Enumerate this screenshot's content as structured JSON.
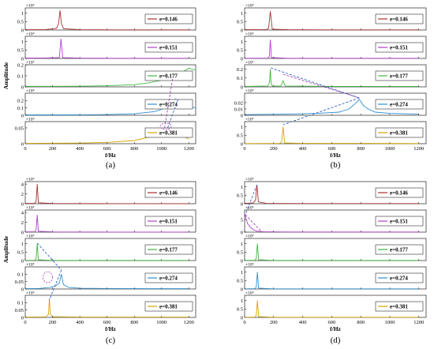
{
  "figure": {
    "xlabel": "f/Hz",
    "ylabel": "Amplitude",
    "colors": {
      "e0146": "#a83030",
      "e0151": "#b040c8",
      "e0177": "#40b840",
      "e0274": "#2f8fd0",
      "e0381": "#d9a400",
      "dashed": "#3060c0",
      "ellipse": "#a040b0",
      "axis": "#000000"
    }
  },
  "chart_data": [
    {
      "type": "line",
      "panel_label": "(a)",
      "xlabel": "f/Hz",
      "ylabel": "Amplitude",
      "xlim": [
        0,
        1250
      ],
      "xticks": [
        "0",
        "200",
        "400",
        "600",
        "800",
        "1000",
        "1200"
      ],
      "subplots": [
        {
          "legend": "e=0.146",
          "color": "#a83030",
          "exponent": "×10⁴",
          "ylim": [
            0,
            1.3
          ],
          "yticks": [
            "0",
            "0.5",
            "1"
          ],
          "series": {
            "x": [
              0,
              150,
              230,
              245,
              255,
              265,
              280,
              400,
              600,
              800,
              1000,
              1200
            ],
            "y": [
              0.02,
              0.03,
              0.1,
              0.4,
              1.15,
              0.4,
              0.08,
              0.02,
              0.01,
              0.01,
              0.01,
              0.01
            ]
          }
        },
        {
          "legend": "e=0.151",
          "color": "#b040c8",
          "exponent": "×10⁴",
          "ylim": [
            0,
            1.3
          ],
          "yticks": [
            "0",
            "0.5",
            "1"
          ],
          "series": {
            "x": [
              0,
              150,
              250,
              262,
              275,
              400,
              600,
              800,
              1000,
              1200
            ],
            "y": [
              0.02,
              0.03,
              0.05,
              1.15,
              0.05,
              0.02,
              0.01,
              0.01,
              0.01,
              0.01
            ]
          }
        },
        {
          "legend": "e=0.177",
          "color": "#40b840",
          "exponent": "×10³",
          "ylim": [
            0,
            0.2
          ],
          "yticks": [
            "0",
            "0.1",
            "0.2"
          ],
          "series": {
            "x": [
              0,
              200,
              400,
              600,
              700,
              800,
              900,
              1000,
              1050,
              1100,
              1150,
              1200,
              1250
            ],
            "y": [
              0.005,
              0.005,
              0.006,
              0.01,
              0.015,
              0.02,
              0.035,
              0.06,
              0.08,
              0.1,
              0.13,
              0.17,
              0.15
            ]
          }
        },
        {
          "legend": "e=0.274",
          "color": "#2f8fd0",
          "exponent": "×10⁴",
          "ylim": [
            0,
            0.3
          ],
          "yticks": [
            "0",
            "0.1",
            "0.2"
          ],
          "series": {
            "x": [
              0,
              400,
              600,
              800,
              950,
              1000,
              1050,
              1100,
              1150,
              1200,
              1250
            ],
            "y": [
              0.005,
              0.006,
              0.01,
              0.02,
              0.05,
              0.08,
              0.13,
              0.22,
              0.16,
              0.12,
              0.1
            ]
          }
        },
        {
          "legend": "e=0.381",
          "color": "#d9a400",
          "exponent": "×10⁴",
          "ylim": [
            0,
            0.07
          ],
          "yticks": [
            "0",
            "0.05"
          ],
          "series": {
            "x": [
              0,
              400,
              600,
              800,
              900,
              950,
              1000,
              1050,
              1100,
              1150,
              1200
            ],
            "y": [
              0.001,
              0.002,
              0.004,
              0.01,
              0.02,
              0.035,
              0.045,
              0.05,
              0.038,
              0.025,
              0.015
            ]
          }
        }
      ]
    },
    {
      "type": "line",
      "panel_label": "(b)",
      "xlabel": "f/Hz",
      "ylabel": "",
      "xlim": [
        0,
        1250
      ],
      "xticks": [
        "0",
        "200",
        "400",
        "600",
        "800",
        "1000",
        "1200"
      ],
      "subplots": [
        {
          "legend": "e=0.146",
          "color": "#a83030",
          "exponent": "×10⁴",
          "ylim": [
            0,
            1.3
          ],
          "yticks": [
            "0",
            "0.5",
            "1"
          ],
          "series": {
            "x": [
              0,
              150,
              165,
              177,
              190,
              300,
              600,
              900,
              1200
            ],
            "y": [
              0.02,
              0.03,
              0.1,
              1.1,
              0.05,
              0.02,
              0.01,
              0.01,
              0.01
            ]
          }
        },
        {
          "legend": "e=0.151",
          "color": "#b040c8",
          "exponent": "×10⁵",
          "ylim": [
            0,
            1.3
          ],
          "yticks": [
            "0",
            "0.5",
            "1"
          ],
          "series": {
            "x": [
              0,
              160,
              170,
              177,
              185,
              300,
              600,
              900,
              1200
            ],
            "y": [
              0.01,
              0.02,
              0.1,
              1.1,
              0.05,
              0.01,
              0.01,
              0.01,
              0.01
            ]
          }
        },
        {
          "legend": "e=0.177",
          "color": "#40b840",
          "exponent": "×10⁵",
          "ylim": [
            0,
            0.25
          ],
          "yticks": [
            "0",
            "0.1",
            "0.2"
          ],
          "series": {
            "x": [
              0,
              160,
              172,
              177,
              182,
              190,
              250,
              265,
              280,
              600,
              900,
              1200
            ],
            "y": [
              0.005,
              0.01,
              0.05,
              0.2,
              0.05,
              0.01,
              0.01,
              0.07,
              0.01,
              0.005,
              0.005,
              0.005
            ]
          }
        },
        {
          "legend": "e=0.274",
          "color": "#2f8fd0",
          "exponent": "×10⁵",
          "ylim": [
            0,
            0.035
          ],
          "yticks": [
            "0",
            "0.01",
            "0.02"
          ],
          "series": {
            "x": [
              0,
              300,
              500,
              650,
              720,
              760,
              790,
              820,
              850,
              900,
              1000,
              1200
            ],
            "y": [
              0.001,
              0.002,
              0.003,
              0.005,
              0.01,
              0.018,
              0.025,
              0.015,
              0.01,
              0.005,
              0.003,
              0.002
            ]
          }
        },
        {
          "legend": "e=0.381",
          "color": "#d9a400",
          "exponent": "×10⁵",
          "ylim": [
            0,
            1.3
          ],
          "yticks": [
            "0",
            "0.5",
            "1"
          ],
          "series": {
            "x": [
              0,
              240,
              255,
              265,
              275,
              400,
              800,
              1200
            ],
            "y": [
              0.01,
              0.02,
              0.1,
              1.0,
              0.05,
              0.02,
              0.02,
              0.01
            ]
          }
        }
      ]
    },
    {
      "type": "line",
      "panel_label": "(c)",
      "xlabel": "f/Hz",
      "ylabel": "Amplitude",
      "xlim": [
        0,
        1250
      ],
      "xticks": [
        "0",
        "200",
        "400",
        "600",
        "800",
        "1000",
        "1200"
      ],
      "subplots": [
        {
          "legend": "e=0.146",
          "color": "#a83030",
          "exponent": "×10⁵",
          "ylim": [
            0,
            4.5
          ],
          "yticks": [
            "0",
            "2",
            "4"
          ],
          "series": {
            "x": [
              0,
              70,
              80,
              88,
              96,
              200,
              600,
              1200
            ],
            "y": [
              0.05,
              0.1,
              0.5,
              4.0,
              0.2,
              0.05,
              0.02,
              0.02
            ]
          }
        },
        {
          "legend": "e=0.151",
          "color": "#b040c8",
          "exponent": "×10⁵",
          "ylim": [
            0,
            4.5
          ],
          "yticks": [
            "0",
            "2",
            "4"
          ],
          "series": {
            "x": [
              0,
              70,
              80,
              88,
              96,
              200,
              600,
              1200
            ],
            "y": [
              0.05,
              0.1,
              0.5,
              3.5,
              0.2,
              0.05,
              0.02,
              0.02
            ]
          }
        },
        {
          "legend": "e=0.177",
          "color": "#40b840",
          "exponent": "×10⁵",
          "ylim": [
            0,
            1.3
          ],
          "yticks": [
            "0",
            "0.5",
            "1"
          ],
          "series": {
            "x": [
              0,
              70,
              80,
              88,
              96,
              200,
              600,
              1200
            ],
            "y": [
              0.01,
              0.02,
              0.1,
              1.0,
              0.05,
              0.01,
              0.01,
              0.01
            ]
          }
        },
        {
          "legend": "e=0.274",
          "color": "#2f8fd0",
          "exponent": "×10⁵",
          "ylim": [
            0,
            0.15
          ],
          "yticks": [
            "0",
            "0.05",
            "0.1"
          ],
          "series": {
            "x": [
              0,
              100,
              180,
              220,
              250,
              265,
              280,
              320,
              400,
              600,
              900,
              1200
            ],
            "y": [
              0.002,
              0.004,
              0.01,
              0.02,
              0.04,
              0.1,
              0.03,
              0.01,
              0.005,
              0.003,
              0.002,
              0.002
            ]
          }
        },
        {
          "legend": "e=0.381",
          "color": "#d9a400",
          "exponent": "×10⁵",
          "ylim": [
            0,
            0.15
          ],
          "yticks": [
            "0",
            "0.05",
            "0.1"
          ],
          "series": {
            "x": [
              0,
              150,
              170,
              177,
              184,
              200,
              400,
              800,
              1200
            ],
            "y": [
              0.002,
              0.004,
              0.02,
              0.13,
              0.02,
              0.005,
              0.002,
              0.002,
              0.002
            ]
          }
        }
      ]
    },
    {
      "type": "line",
      "panel_label": "(d)",
      "xlabel": "f/Hz",
      "ylabel": "",
      "xlim": [
        0,
        1250
      ],
      "xticks": [
        "0",
        "200",
        "400",
        "600",
        "800",
        "1000",
        "1200"
      ],
      "subplots": [
        {
          "legend": "e=0.146",
          "color": "#a83030",
          "exponent": "×10⁶",
          "ylim": [
            0,
            1.3
          ],
          "yticks": [
            "0",
            "0.5",
            "1"
          ],
          "series": {
            "x": [
              0,
              60,
              75,
              85,
              95,
              150,
              400,
              800,
              1200
            ],
            "y": [
              0.02,
              0.05,
              0.2,
              1.1,
              0.1,
              0.02,
              0.01,
              0.01,
              0.01
            ]
          }
        },
        {
          "legend": "e=0.151",
          "color": "#b040c8",
          "exponent": "×10⁵",
          "ylim": [
            0,
            9
          ],
          "yticks": [
            "0",
            "5"
          ],
          "series": {
            "x": [
              0,
              10,
              20,
              40,
              60,
              80,
              100,
              130,
              200,
              400,
              800,
              1200
            ],
            "y": [
              7.5,
              5.5,
              3.5,
              2.0,
              1.0,
              0.5,
              0.3,
              0.2,
              0.1,
              0.05,
              0.05,
              0.05
            ]
          }
        },
        {
          "legend": "e=0.177",
          "color": "#40b840",
          "exponent": "×10⁶",
          "ylim": [
            0,
            1.3
          ],
          "yticks": [
            "0",
            "0.5",
            "1"
          ],
          "series": {
            "x": [
              0,
              70,
              80,
              88,
              96,
              200,
              600,
              1200
            ],
            "y": [
              0.01,
              0.02,
              0.1,
              1.0,
              0.05,
              0.01,
              0.01,
              0.01
            ]
          }
        },
        {
          "legend": "e=0.274",
          "color": "#2f8fd0",
          "exponent": "×10⁶",
          "ylim": [
            0,
            1.3
          ],
          "yticks": [
            "0",
            "0.5",
            "1"
          ],
          "series": {
            "x": [
              0,
              70,
              80,
              88,
              96,
              200,
              600,
              1200
            ],
            "y": [
              0.01,
              0.02,
              0.1,
              1.0,
              0.05,
              0.01,
              0.01,
              0.01
            ]
          }
        },
        {
          "legend": "e=0.381",
          "color": "#d9a400",
          "exponent": "×10⁶",
          "ylim": [
            0,
            1.3
          ],
          "yticks": [
            "0",
            "0.5",
            "1"
          ],
          "series": {
            "x": [
              0,
              70,
              80,
              88,
              96,
              200,
              600,
              1200
            ],
            "y": [
              0.01,
              0.02,
              0.1,
              1.0,
              0.05,
              0.01,
              0.01,
              0.01
            ]
          }
        }
      ]
    }
  ]
}
